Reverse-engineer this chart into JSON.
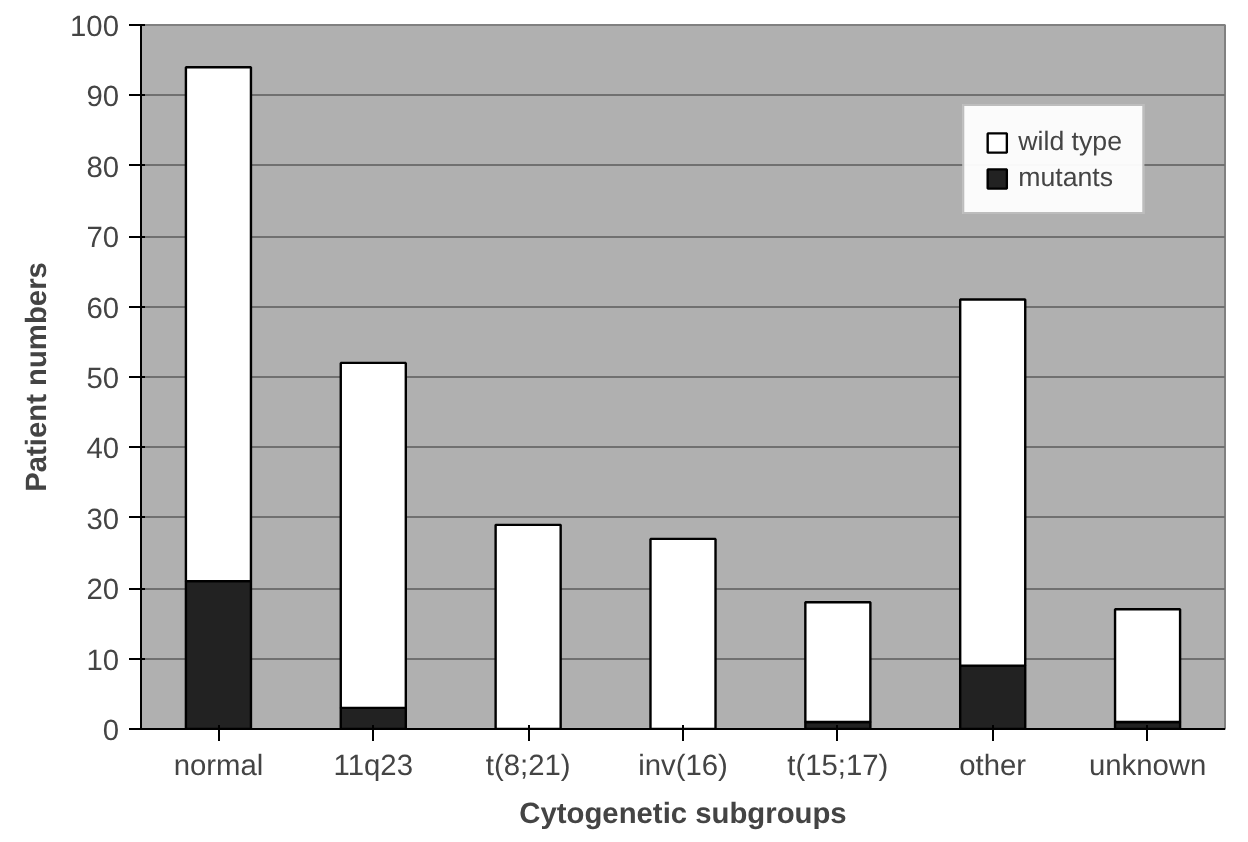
{
  "chart_data": {
    "type": "bar",
    "stacked": true,
    "xlabel": "Cytogenetic subgroups",
    "ylabel": "Patient numbers",
    "categories": [
      "normal",
      "11q23",
      "t(8;21)",
      "inv(16)",
      "t(15;17)",
      "other",
      "unknown"
    ],
    "series": [
      {
        "name": "mutants",
        "color": "#222222",
        "values": [
          21,
          3,
          0,
          0,
          1,
          9,
          1
        ]
      },
      {
        "name": "wild type",
        "color": "#ffffff",
        "values": [
          73,
          49,
          29,
          27,
          17,
          52,
          16
        ]
      }
    ],
    "ylim": [
      0,
      100
    ],
    "yticks": [
      0,
      10,
      20,
      30,
      40,
      50,
      60,
      70,
      80,
      90,
      100
    ],
    "grid": "y",
    "legend": "top right"
  }
}
